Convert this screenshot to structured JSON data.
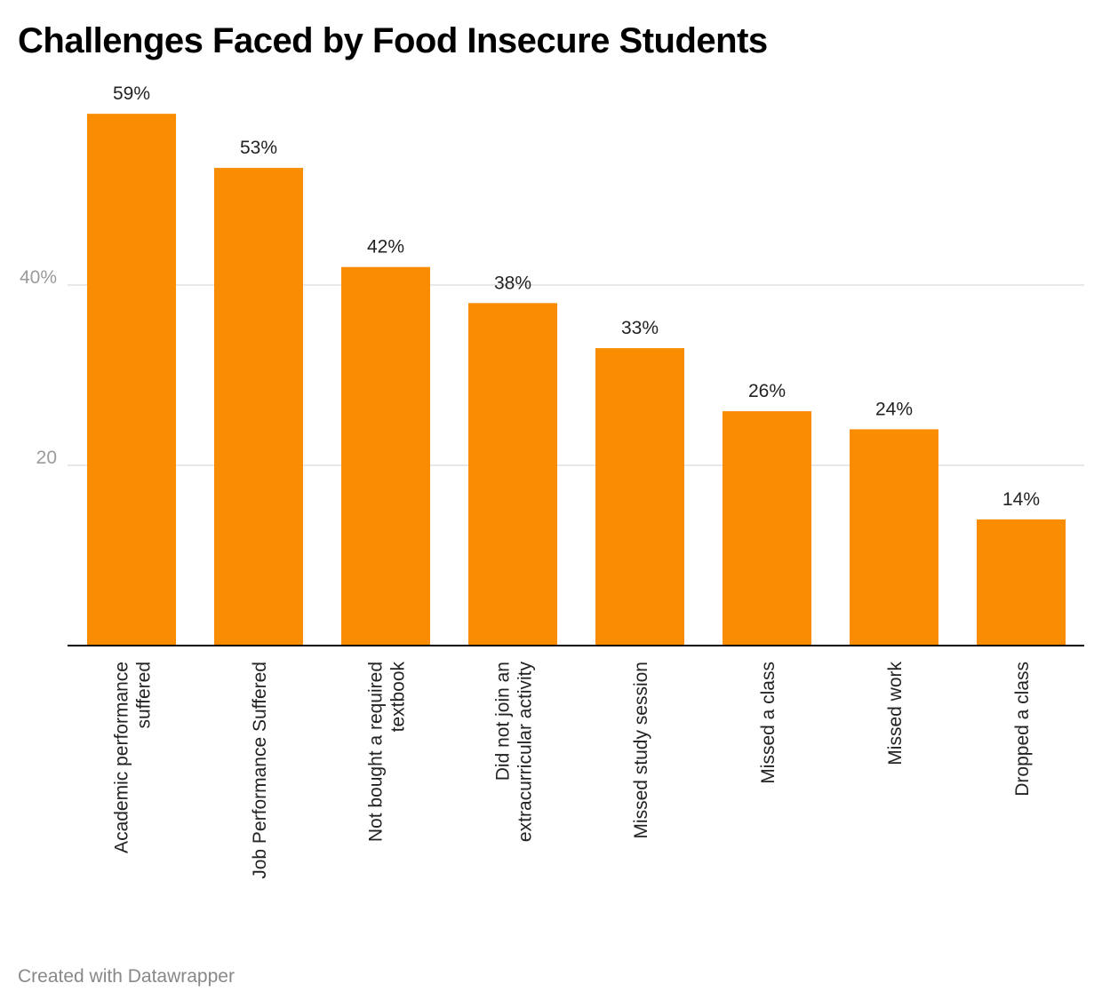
{
  "colors": {
    "bar": "#f98c00",
    "background": "#ffffff",
    "title": "#000000",
    "footer": "#888888"
  },
  "footer": {
    "credit": "Created with Datawrapper"
  },
  "chart_data": {
    "type": "bar",
    "title": "Challenges Faced by Food Insecure Students",
    "xlabel": "",
    "ylabel": "",
    "ylim": [
      0,
      60
    ],
    "grid": true,
    "legend": "none",
    "yticks": [
      {
        "value": 20,
        "label": "20"
      },
      {
        "value": 40,
        "label": "40%"
      }
    ],
    "categories": [
      [
        "Academic performance",
        "suffered"
      ],
      [
        "Job Performance Suffered"
      ],
      [
        "Not bought a required",
        "textbook"
      ],
      [
        "Did not join an",
        "extracurricular activity"
      ],
      [
        "Missed study session"
      ],
      [
        "Missed a class"
      ],
      [
        "Missed work"
      ],
      [
        "Dropped a class"
      ]
    ],
    "values": [
      59,
      53,
      42,
      38,
      33,
      26,
      24,
      14
    ],
    "value_labels": [
      "59%",
      "53%",
      "42%",
      "38%",
      "33%",
      "26%",
      "24%",
      "14%"
    ]
  }
}
